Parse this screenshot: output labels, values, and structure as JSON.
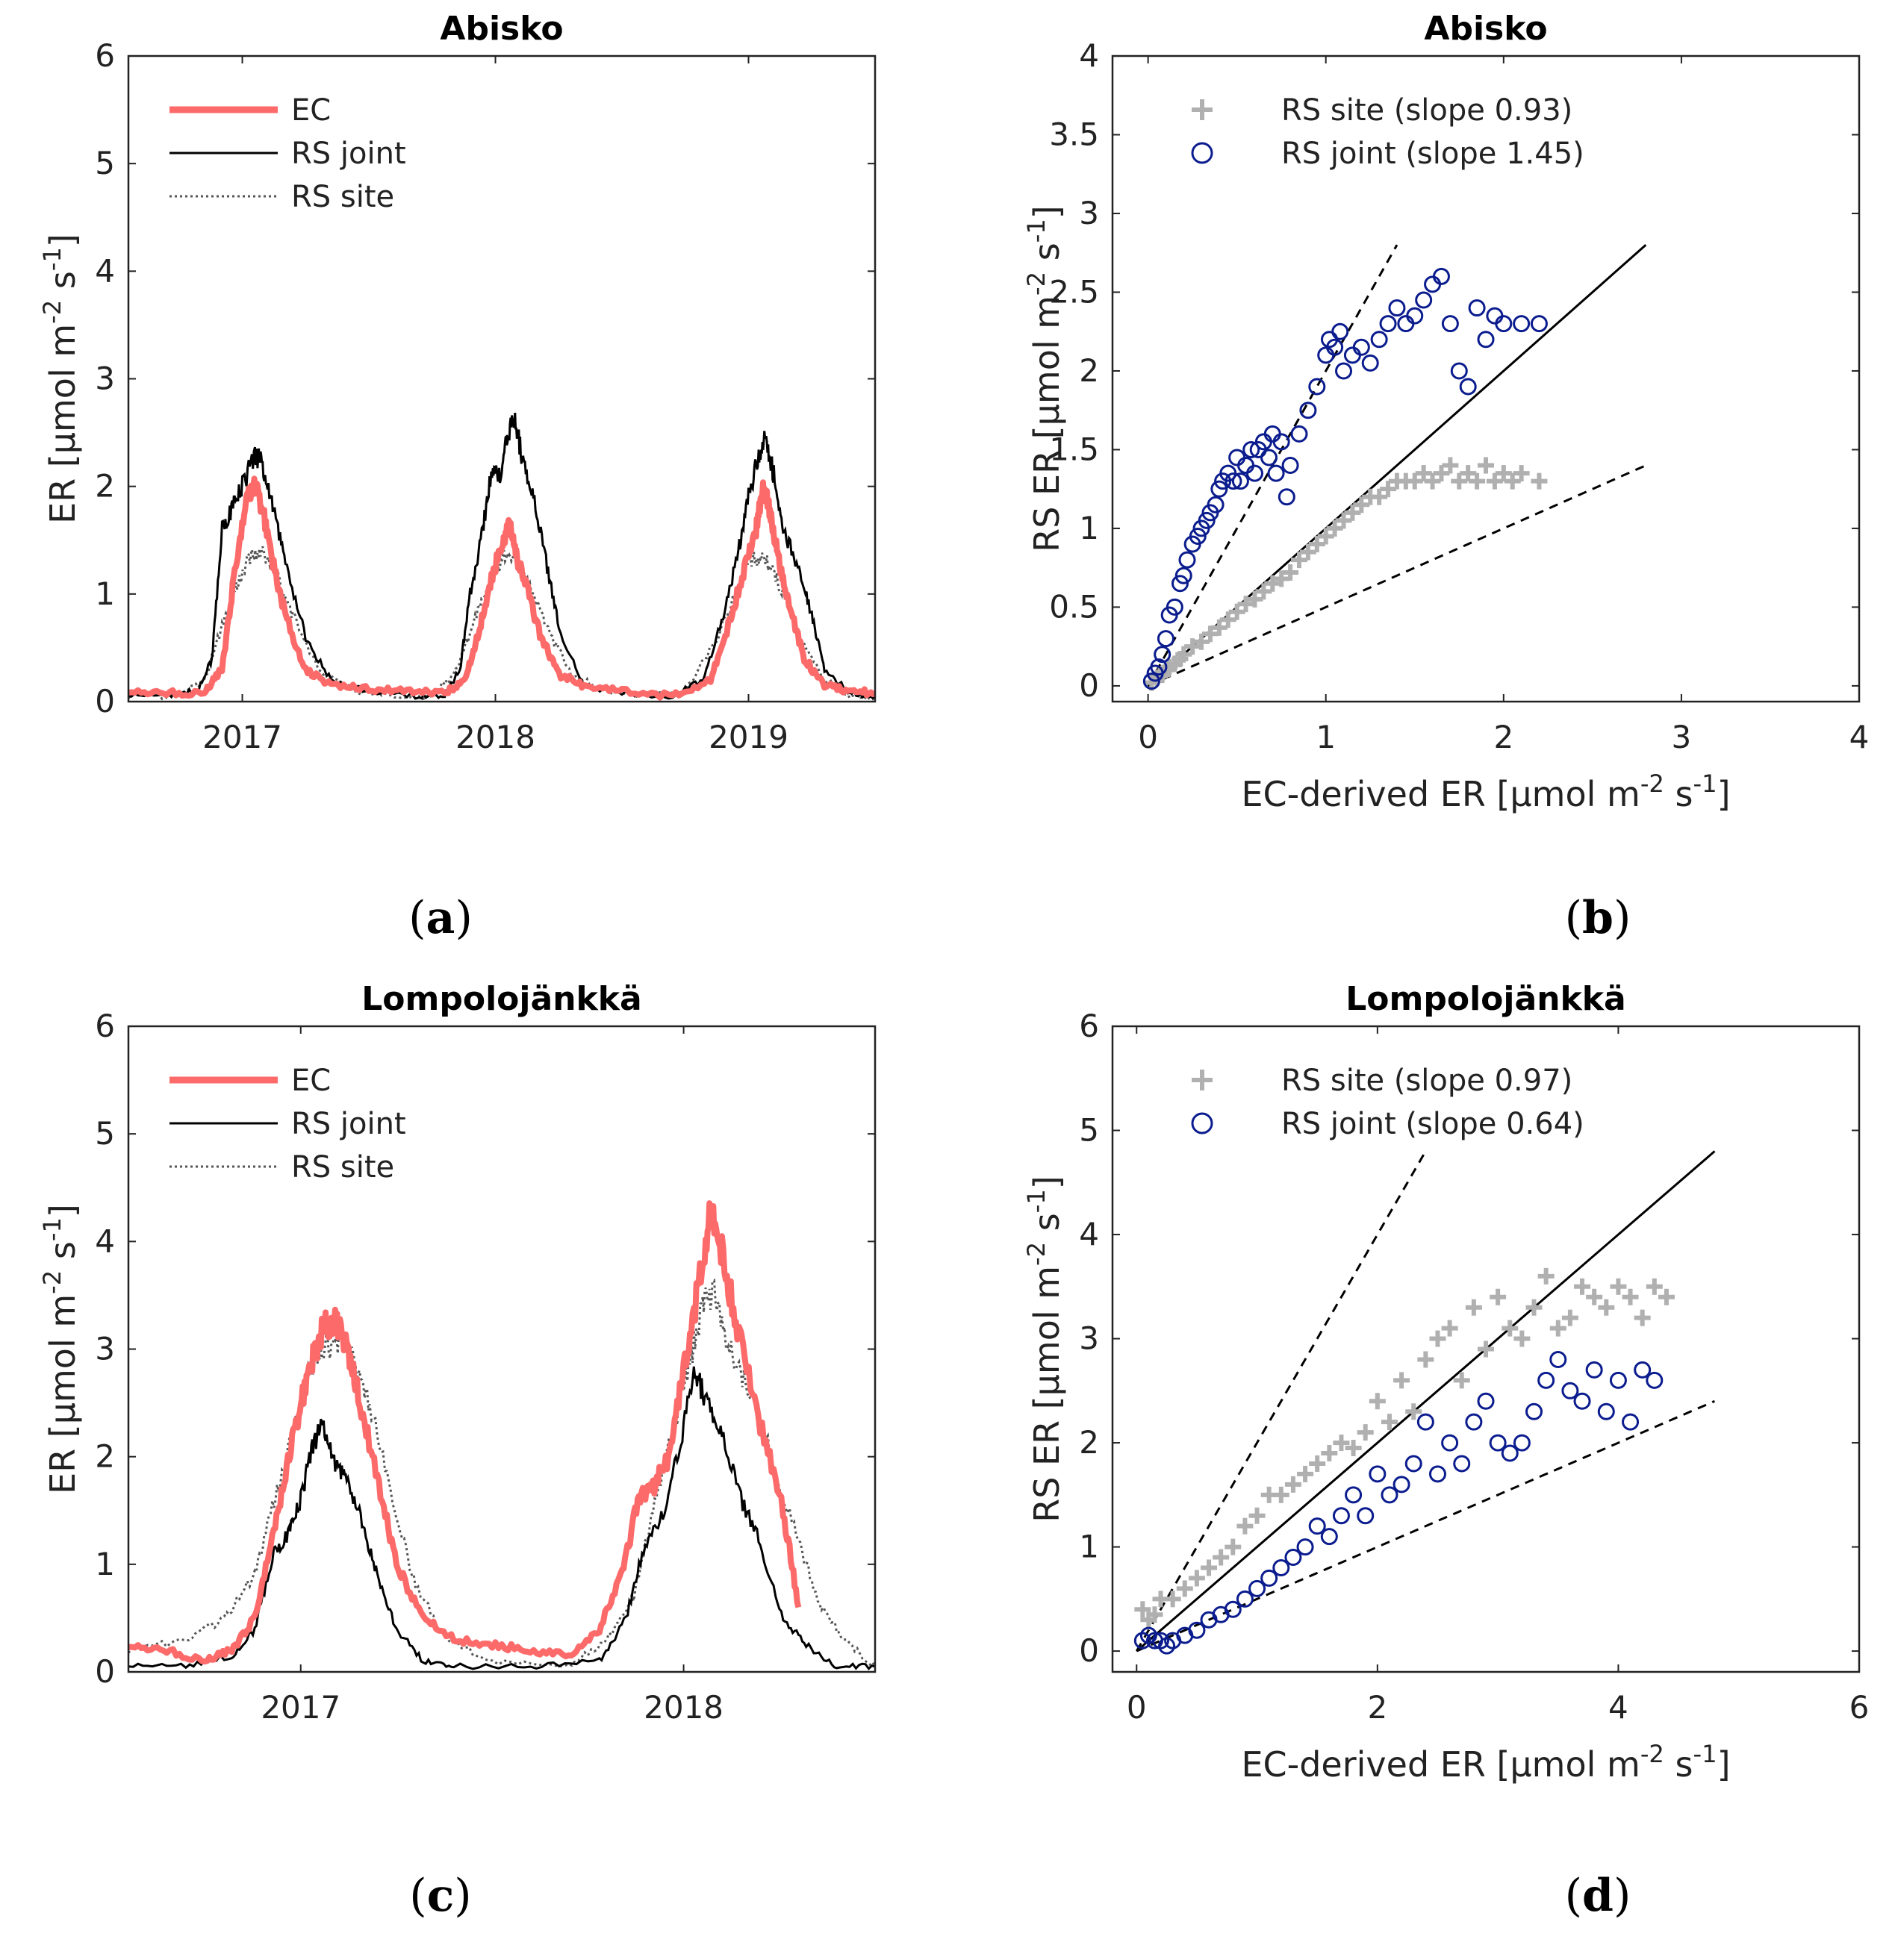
{
  "panel_labels": [
    "(a)",
    "(b)",
    "(c)",
    "(d)"
  ],
  "colors": {
    "ec": "#fd6a6a",
    "rs_joint_line": "#000000",
    "rs_site_line": "#555555",
    "rs_site_marker": "#b0b0b0",
    "rs_joint_marker": "#0b1c8e"
  },
  "chart_data": [
    {
      "id": "a",
      "type": "line",
      "title": "Abisko",
      "ylabel": "ER [μmol m-2 s-1]",
      "xlabel": "",
      "x_range": [
        2016.55,
        2019.5
      ],
      "ylim": [
        0,
        6
      ],
      "xticks": [
        {
          "v": 2017,
          "label": "2017"
        },
        {
          "v": 2018,
          "label": "2018"
        },
        {
          "v": 2019,
          "label": "2019"
        }
      ],
      "yticks": [
        0,
        1,
        2,
        3,
        4,
        5,
        6
      ],
      "legend_location": "top-left",
      "series": [
        {
          "name": "EC",
          "style": "ec",
          "x": [
            2016.55,
            2016.7,
            2016.85,
            2016.92,
            2016.97,
            2017.02,
            2017.05,
            2017.08,
            2017.12,
            2017.17,
            2017.25,
            2017.35,
            2017.5,
            2017.65,
            2017.8,
            2017.88,
            2017.93,
            2017.98,
            2018.03,
            2018.06,
            2018.09,
            2018.13,
            2018.18,
            2018.25,
            2018.35,
            2018.5,
            2018.7,
            2018.85,
            2018.92,
            2018.98,
            2019.03,
            2019.06,
            2019.09,
            2019.12,
            2019.16,
            2019.22,
            2019.3,
            2019.4,
            2019.5
          ],
          "values": [
            0.1,
            0.08,
            0.08,
            0.3,
            1.2,
            1.9,
            2.0,
            1.8,
            1.3,
            0.8,
            0.3,
            0.15,
            0.12,
            0.1,
            0.08,
            0.2,
            0.6,
            1.1,
            1.5,
            1.65,
            1.3,
            1.0,
            0.6,
            0.25,
            0.15,
            0.1,
            0.05,
            0.2,
            0.7,
            1.2,
            1.6,
            2.0,
            1.7,
            1.3,
            0.9,
            0.4,
            0.15,
            0.1,
            0.08
          ]
        },
        {
          "name": "RS joint",
          "style": "joint",
          "x": [
            2016.55,
            2016.7,
            2016.82,
            2016.88,
            2016.92,
            2016.96,
            2017.0,
            2017.05,
            2017.08,
            2017.12,
            2017.17,
            2017.25,
            2017.35,
            2017.5,
            2017.7,
            2017.8,
            2017.86,
            2017.9,
            2017.95,
            2017.99,
            2018.02,
            2018.05,
            2018.08,
            2018.11,
            2018.15,
            2018.2,
            2018.25,
            2018.35,
            2018.5,
            2018.7,
            2018.82,
            2018.9,
            2018.96,
            2019.0,
            2019.04,
            2019.07,
            2019.1,
            2019.14,
            2019.2,
            2019.25,
            2019.3,
            2019.4,
            2019.5
          ],
          "values": [
            0.05,
            0.05,
            0.1,
            0.4,
            1.6,
            1.8,
            2.0,
            2.3,
            2.2,
            1.8,
            1.3,
            0.6,
            0.2,
            0.1,
            0.05,
            0.05,
            0.3,
            1.0,
            1.6,
            2.2,
            2.1,
            2.5,
            2.6,
            2.2,
            1.9,
            1.3,
            0.7,
            0.15,
            0.08,
            0.05,
            0.2,
            0.8,
            1.4,
            1.9,
            2.3,
            2.45,
            2.1,
            1.6,
            1.2,
            0.8,
            0.3,
            0.08,
            0.05
          ]
        },
        {
          "name": "RS site",
          "style": "site",
          "x": [
            2016.55,
            2016.75,
            2016.85,
            2016.92,
            2016.98,
            2017.03,
            2017.08,
            2017.13,
            2017.2,
            2017.3,
            2017.45,
            2017.6,
            2017.75,
            2017.85,
            2017.92,
            2017.98,
            2018.03,
            2018.08,
            2018.13,
            2018.2,
            2018.3,
            2018.45,
            2018.6,
            2018.75,
            2018.88,
            2018.95,
            2019.0,
            2019.05,
            2019.09,
            2019.14,
            2019.2,
            2019.3,
            2019.4,
            2019.5
          ],
          "values": [
            0.05,
            0.05,
            0.2,
            0.7,
            1.1,
            1.35,
            1.4,
            1.2,
            0.8,
            0.3,
            0.1,
            0.05,
            0.05,
            0.3,
            0.8,
            1.1,
            1.35,
            1.35,
            1.1,
            0.7,
            0.25,
            0.08,
            0.05,
            0.1,
            0.6,
            1.0,
            1.3,
            1.35,
            1.25,
            1.0,
            0.6,
            0.2,
            0.05,
            0.05
          ]
        }
      ]
    },
    {
      "id": "b",
      "type": "scatter",
      "title": "Abisko",
      "xlabel": "EC-derived ER [μmol m-2 s-1]",
      "ylabel": "RS ER [μmol m-2 s-1]",
      "xlim": [
        -0.2,
        4
      ],
      "ylim": [
        -0.1,
        4
      ],
      "xticks": [
        0,
        1,
        2,
        3,
        4
      ],
      "yticks": [
        0,
        0.5,
        1,
        1.5,
        2,
        2.5,
        3,
        3.5,
        4
      ],
      "legend_location": "top-left",
      "reference_lines": [
        {
          "style": "solid",
          "slope": 1,
          "x_end": 2.8
        },
        {
          "style": "dashed",
          "slope": 2,
          "x_end": 1.4
        },
        {
          "style": "dashed",
          "slope": 0.5,
          "x_end": 2.8
        }
      ],
      "series": [
        {
          "name": "RS site (slope 0.93)",
          "marker": "plus",
          "x": [
            0.02,
            0.05,
            0.08,
            0.1,
            0.12,
            0.15,
            0.18,
            0.2,
            0.25,
            0.3,
            0.35,
            0.4,
            0.45,
            0.5,
            0.55,
            0.6,
            0.65,
            0.7,
            0.75,
            0.8,
            0.85,
            0.9,
            0.95,
            1.0,
            1.05,
            1.1,
            1.15,
            1.2,
            1.25,
            1.3,
            1.35,
            1.4,
            1.45,
            1.5,
            1.55,
            1.6,
            1.65,
            1.7,
            1.75,
            1.8,
            1.85,
            1.9,
            1.95,
            2.0,
            2.05,
            2.1,
            2.2
          ],
          "values": [
            0.02,
            0.05,
            0.07,
            0.1,
            0.12,
            0.14,
            0.17,
            0.2,
            0.25,
            0.28,
            0.33,
            0.37,
            0.42,
            0.47,
            0.52,
            0.55,
            0.6,
            0.65,
            0.68,
            0.72,
            0.8,
            0.85,
            0.9,
            0.95,
            1.0,
            1.05,
            1.1,
            1.15,
            1.2,
            1.2,
            1.25,
            1.3,
            1.3,
            1.3,
            1.35,
            1.3,
            1.35,
            1.4,
            1.3,
            1.35,
            1.3,
            1.4,
            1.3,
            1.35,
            1.3,
            1.35,
            1.3
          ]
        },
        {
          "name": "RS joint (slope 1.45)",
          "marker": "circle",
          "x": [
            0.02,
            0.04,
            0.06,
            0.08,
            0.1,
            0.12,
            0.15,
            0.18,
            0.2,
            0.22,
            0.25,
            0.28,
            0.3,
            0.33,
            0.35,
            0.38,
            0.4,
            0.42,
            0.45,
            0.48,
            0.5,
            0.52,
            0.55,
            0.58,
            0.6,
            0.62,
            0.65,
            0.68,
            0.7,
            0.72,
            0.75,
            0.78,
            0.8,
            0.85,
            0.9,
            0.95,
            1.0,
            1.02,
            1.05,
            1.08,
            1.1,
            1.15,
            1.2,
            1.25,
            1.3,
            1.35,
            1.4,
            1.45,
            1.5,
            1.55,
            1.6,
            1.65,
            1.7,
            1.75,
            1.8,
            1.85,
            1.9,
            1.95,
            2.0,
            2.1,
            2.2
          ],
          "values": [
            0.03,
            0.08,
            0.12,
            0.2,
            0.3,
            0.45,
            0.5,
            0.65,
            0.7,
            0.8,
            0.9,
            0.95,
            1.0,
            1.05,
            1.1,
            1.15,
            1.25,
            1.3,
            1.35,
            1.3,
            1.45,
            1.3,
            1.4,
            1.5,
            1.35,
            1.5,
            1.55,
            1.45,
            1.6,
            1.35,
            1.55,
            1.2,
            1.4,
            1.6,
            1.75,
            1.9,
            2.1,
            2.2,
            2.15,
            2.25,
            2.0,
            2.1,
            2.15,
            2.05,
            2.2,
            2.3,
            2.4,
            2.3,
            2.35,
            2.45,
            2.55,
            2.6,
            2.3,
            2.0,
            1.9,
            2.4,
            2.2,
            2.35,
            2.3,
            2.3,
            2.3
          ]
        }
      ]
    },
    {
      "id": "c",
      "type": "line",
      "title": "Lompolojänkkä",
      "ylabel": "ER [μmol m-2 s-1]",
      "xlabel": "",
      "x_range": [
        2016.55,
        2018.5
      ],
      "ylim": [
        0,
        6
      ],
      "xticks": [
        {
          "v": 2017,
          "label": "2017"
        },
        {
          "v": 2018,
          "label": "2018"
        }
      ],
      "yticks": [
        0,
        1,
        2,
        3,
        4,
        5,
        6
      ],
      "legend_location": "top-left",
      "series": [
        {
          "name": "EC",
          "style": "ec",
          "x": [
            2016.55,
            2016.65,
            2016.75,
            2016.82,
            2016.88,
            2016.93,
            2016.97,
            2017.0,
            2017.03,
            2017.06,
            2017.09,
            2017.12,
            2017.15,
            2017.2,
            2017.25,
            2017.32,
            2017.4,
            2017.5,
            2017.6,
            2017.7,
            2017.78,
            2017.84,
            2017.88,
            2017.92,
            2017.96,
            2018.0,
            2018.04,
            2018.07,
            2018.1,
            2018.14,
            2018.2,
            2018.26,
            2018.3
          ],
          "values": [
            0.25,
            0.2,
            0.1,
            0.2,
            0.5,
            1.3,
            2.0,
            2.5,
            2.9,
            3.2,
            3.3,
            3.0,
            2.6,
            1.8,
            1.0,
            0.5,
            0.3,
            0.25,
            0.2,
            0.15,
            0.4,
            0.9,
            1.6,
            1.7,
            2.0,
            2.8,
            3.6,
            4.3,
            3.9,
            3.2,
            2.3,
            1.5,
            0.6
          ]
        },
        {
          "name": "RS joint",
          "style": "joint",
          "x": [
            2016.55,
            2016.7,
            2016.82,
            2016.88,
            2016.93,
            2016.97,
            2017.0,
            2017.03,
            2017.06,
            2017.09,
            2017.12,
            2017.16,
            2017.2,
            2017.25,
            2017.32,
            2017.4,
            2017.6,
            2017.78,
            2017.85,
            2017.9,
            2017.95,
            2017.99,
            2018.03,
            2018.06,
            2018.1,
            2018.15,
            2018.2,
            2018.26,
            2018.32,
            2018.4,
            2018.5
          ],
          "values": [
            0.05,
            0.05,
            0.15,
            0.4,
            1.1,
            1.3,
            1.6,
            2.1,
            2.3,
            1.9,
            1.8,
            1.4,
            0.9,
            0.4,
            0.1,
            0.05,
            0.05,
            0.1,
            0.5,
            1.2,
            1.5,
            2.1,
            2.8,
            2.5,
            2.2,
            1.6,
            1.2,
            0.5,
            0.25,
            0.05,
            0.05
          ]
        },
        {
          "name": "RS site",
          "style": "site",
          "x": [
            2016.55,
            2016.7,
            2016.8,
            2016.88,
            2016.93,
            2016.98,
            2017.02,
            2017.06,
            2017.1,
            2017.14,
            2017.18,
            2017.24,
            2017.3,
            2017.38,
            2017.5,
            2017.7,
            2017.8,
            2017.87,
            2017.92,
            2017.97,
            2018.01,
            2018.05,
            2018.08,
            2018.12,
            2018.17,
            2018.23,
            2018.3,
            2018.36,
            2018.42,
            2018.5
          ],
          "values": [
            0.2,
            0.3,
            0.5,
            0.9,
            1.6,
            2.2,
            2.8,
            3.0,
            3.1,
            2.9,
            2.5,
            1.6,
            0.8,
            0.3,
            0.1,
            0.05,
            0.3,
            0.7,
            1.5,
            2.2,
            2.8,
            3.4,
            3.5,
            3.0,
            2.6,
            2.0,
            1.2,
            0.6,
            0.3,
            0.05
          ]
        }
      ]
    },
    {
      "id": "d",
      "type": "scatter",
      "title": "Lompolojänkkä",
      "xlabel": "EC-derived ER [μmol m-2 s-1]",
      "ylabel": "RS ER [μmol m-2 s-1]",
      "xlim": [
        -0.2,
        6
      ],
      "ylim": [
        -0.2,
        6
      ],
      "xticks": [
        0,
        2,
        4,
        6
      ],
      "yticks": [
        0,
        1,
        2,
        3,
        4,
        5,
        6
      ],
      "legend_location": "top-left",
      "reference_lines": [
        {
          "style": "solid",
          "slope": 1,
          "x_end": 4.8
        },
        {
          "style": "dashed",
          "slope": 2,
          "x_end": 2.4
        },
        {
          "style": "dashed",
          "slope": 0.5,
          "x_end": 4.8
        }
      ],
      "series": [
        {
          "name": "RS site (slope 0.97)",
          "marker": "plus",
          "x": [
            0.05,
            0.1,
            0.15,
            0.2,
            0.3,
            0.4,
            0.5,
            0.6,
            0.7,
            0.8,
            0.9,
            1.0,
            1.1,
            1.2,
            1.3,
            1.4,
            1.5,
            1.6,
            1.7,
            1.8,
            1.9,
            2.0,
            2.1,
            2.2,
            2.3,
            2.4,
            2.5,
            2.6,
            2.7,
            2.8,
            2.9,
            3.0,
            3.1,
            3.2,
            3.3,
            3.4,
            3.5,
            3.6,
            3.7,
            3.8,
            3.9,
            4.0,
            4.1,
            4.2,
            4.3,
            4.4
          ],
          "values": [
            0.4,
            0.3,
            0.35,
            0.5,
            0.5,
            0.6,
            0.7,
            0.8,
            0.9,
            1.0,
            1.2,
            1.3,
            1.5,
            1.5,
            1.6,
            1.7,
            1.8,
            1.9,
            2.0,
            1.95,
            2.1,
            2.4,
            2.2,
            2.6,
            2.3,
            2.8,
            3.0,
            3.1,
            2.6,
            3.3,
            2.9,
            3.4,
            3.1,
            3.0,
            3.3,
            3.6,
            3.1,
            3.2,
            3.5,
            3.4,
            3.3,
            3.5,
            3.4,
            3.2,
            3.5,
            3.4
          ]
        },
        {
          "name": "RS joint (slope 0.64)",
          "marker": "circle",
          "x": [
            0.05,
            0.1,
            0.15,
            0.2,
            0.25,
            0.3,
            0.4,
            0.5,
            0.6,
            0.7,
            0.8,
            0.9,
            1.0,
            1.1,
            1.2,
            1.3,
            1.4,
            1.5,
            1.6,
            1.7,
            1.8,
            1.9,
            2.0,
            2.1,
            2.2,
            2.3,
            2.4,
            2.5,
            2.6,
            2.7,
            2.8,
            2.9,
            3.0,
            3.1,
            3.2,
            3.3,
            3.4,
            3.5,
            3.6,
            3.7,
            3.8,
            3.9,
            4.0,
            4.1,
            4.2,
            4.3
          ],
          "values": [
            0.1,
            0.15,
            0.1,
            0.1,
            0.05,
            0.1,
            0.15,
            0.2,
            0.3,
            0.35,
            0.4,
            0.5,
            0.6,
            0.7,
            0.8,
            0.9,
            1.0,
            1.2,
            1.1,
            1.3,
            1.5,
            1.3,
            1.7,
            1.5,
            1.6,
            1.8,
            2.2,
            1.7,
            2.0,
            1.8,
            2.2,
            2.4,
            2.0,
            1.9,
            2.0,
            2.3,
            2.6,
            2.8,
            2.5,
            2.4,
            2.7,
            2.3,
            2.6,
            2.2,
            2.7,
            2.6
          ]
        }
      ]
    }
  ]
}
